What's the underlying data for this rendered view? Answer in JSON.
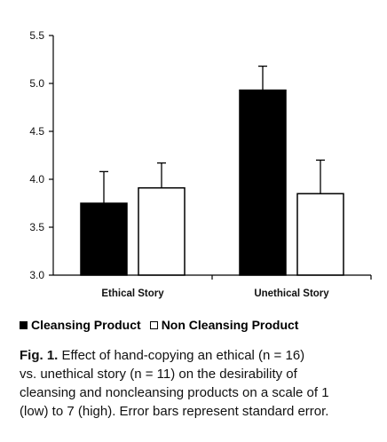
{
  "chart_data": {
    "type": "bar",
    "categories": [
      "Ethical Story",
      "Unethical Story"
    ],
    "series": [
      {
        "name": "Cleansing Product",
        "values": [
          3.75,
          4.93
        ],
        "errors": [
          0.33,
          0.25
        ],
        "color": "#000000"
      },
      {
        "name": "Non Cleansing Product",
        "values": [
          3.91,
          3.85
        ],
        "errors": [
          0.26,
          0.35
        ],
        "color": "#ffffff"
      }
    ],
    "ylim": [
      3.0,
      5.5
    ],
    "yticks": [
      "3.0",
      "3.5",
      "4.0",
      "4.5",
      "5.0",
      "5.5"
    ],
    "grid": false,
    "legend_position": "bottom",
    "error_bars": "upper"
  },
  "caption": {
    "label": "Fig. 1.",
    "line1": "Effect of hand-copying an ethical (n = 16)",
    "line2": "vs. unethical story (n = 11) on the desirability of",
    "line3": "cleansing and noncleansing products on a scale of 1",
    "line4": "(low) to 7 (high). Error bars represent standard error."
  }
}
